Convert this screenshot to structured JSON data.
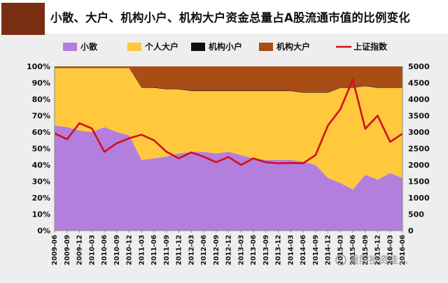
{
  "chart_data": {
    "type": "area",
    "title": "小散、大户、机构小户、机构大户资金总量占A股流通市值的比例变化",
    "x": [
      "2009-06",
      "2009-09",
      "2009-12",
      "2010-03",
      "2010-06",
      "2010-09",
      "2010-12",
      "2011-03",
      "2011-06",
      "2011-09",
      "2011-12",
      "2012-03",
      "2012-06",
      "2012-09",
      "2012-12",
      "2013-03",
      "2013-06",
      "2013-09",
      "2013-12",
      "2014-03",
      "2014-06",
      "2014-09",
      "2014-12",
      "2015-03",
      "2015-06",
      "2015-09",
      "2015-12",
      "2016-03",
      "2016-06"
    ],
    "series": [
      {
        "name": "小散",
        "color": "#b47ede",
        "values": [
          64,
          63,
          61,
          60,
          63,
          60,
          58,
          43,
          44,
          45,
          47,
          48,
          48,
          47,
          48,
          46,
          44,
          43,
          43,
          43,
          42,
          40,
          32,
          29,
          25,
          34,
          31,
          35,
          32
        ]
      },
      {
        "name": "个人大户",
        "color": "#ffc83d",
        "values": [
          35,
          36,
          38,
          39,
          36,
          39,
          41,
          44,
          43,
          41,
          39,
          37,
          37,
          38,
          37,
          39,
          41,
          42,
          42,
          42,
          42,
          44,
          52,
          58,
          62,
          54,
          56,
          52,
          55
        ]
      },
      {
        "name": "机构小户",
        "color": "#0f0f0f",
        "values": [
          0.3,
          0.3,
          0.3,
          0.3,
          0.3,
          0.3,
          0.3,
          0.3,
          0.3,
          0.3,
          0.3,
          0.3,
          0.3,
          0.3,
          0.3,
          0.3,
          0.3,
          0.3,
          0.3,
          0.3,
          0.3,
          0.3,
          0.3,
          0.3,
          0.3,
          0.3,
          0.3,
          0.3,
          0.3
        ]
      },
      {
        "name": "机构大户",
        "color": "#a94c16",
        "values": [
          0.7,
          0.7,
          0.7,
          0.7,
          0.7,
          0.7,
          0.7,
          12.7,
          12.7,
          13.7,
          13.7,
          14.7,
          14.7,
          14.7,
          14.7,
          14.7,
          14.7,
          14.7,
          14.7,
          14.7,
          15.7,
          15.7,
          15.7,
          12.7,
          12.7,
          11.7,
          12.7,
          12.7,
          12.7
        ]
      }
    ],
    "line_series": {
      "name": "上证指数",
      "color": "#d0101a",
      "axis": "right",
      "values": [
        2960,
        2780,
        3270,
        3110,
        2400,
        2660,
        2810,
        2920,
        2750,
        2400,
        2200,
        2380,
        2250,
        2080,
        2240,
        2000,
        2200,
        2080,
        2050,
        2060,
        2050,
        2300,
        3200,
        3700,
        4600,
        3100,
        3500,
        2700,
        2950
      ]
    },
    "left_ticks": [
      "0%",
      "10%",
      "20%",
      "30%",
      "40%",
      "50%",
      "60%",
      "70%",
      "80%",
      "90%",
      "100%"
    ],
    "right_ticks": [
      "0",
      "500",
      "1000",
      "1500",
      "2000",
      "2500",
      "3000",
      "3500",
      "4000",
      "4500",
      "5000"
    ],
    "ylim": [
      0,
      100
    ],
    "y2lim": [
      0,
      5000
    ],
    "legend_position": "top"
  },
  "watermark": "重阳投资佳人"
}
